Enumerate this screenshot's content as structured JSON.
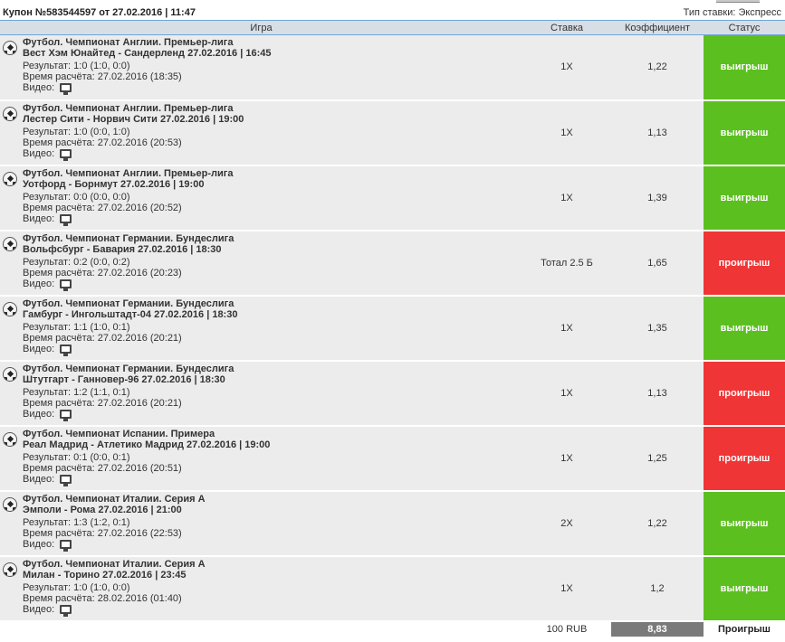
{
  "coupon": {
    "title": "Купон №583544597 от 27.02.2016 | 11:47",
    "bet_type": "Тип ставки: Экспресс"
  },
  "columns": {
    "game": "Игра",
    "stake": "Ставка",
    "coef": "Коэффициент",
    "status": "Статус"
  },
  "labels": {
    "video": "Видео:"
  },
  "colors": {
    "win": "#5cbf20",
    "lose": "#ef3535",
    "header_bg": "#d8dee5",
    "row_bg": "#ececec",
    "total_bg": "#7a7a7a"
  },
  "icons": {
    "sport": "soccer-ball-icon",
    "video": "monitor-icon"
  },
  "matches": [
    {
      "league": "Футбол. Чемпионат Англии. Премьер-лига",
      "teams": "Вест Хэм Юнайтед - Сандерленд 27.02.2016 | 16:45",
      "result": "Результат: 1:0 (1:0, 0:0)",
      "calc_time": "Время расчёта: 27.02.2016 (18:35)",
      "stake": "1X",
      "coef": "1,22",
      "status": "выигрыш",
      "outcome": "win"
    },
    {
      "league": "Футбол. Чемпионат Англии. Премьер-лига",
      "teams": "Лестер Сити - Норвич Сити 27.02.2016 | 19:00",
      "result": "Результат: 1:0 (0:0, 1:0)",
      "calc_time": "Время расчёта: 27.02.2016 (20:53)",
      "stake": "1X",
      "coef": "1,13",
      "status": "выигрыш",
      "outcome": "win"
    },
    {
      "league": "Футбол. Чемпионат Англии. Премьер-лига",
      "teams": "Уотфорд - Борнмут 27.02.2016 | 19:00",
      "result": "Результат: 0:0 (0:0, 0:0)",
      "calc_time": "Время расчёта: 27.02.2016 (20:52)",
      "stake": "1X",
      "coef": "1,39",
      "status": "выигрыш",
      "outcome": "win"
    },
    {
      "league": "Футбол. Чемпионат Германии. Бундеслига",
      "teams": "Вольфсбург - Бавария 27.02.2016 | 18:30",
      "result": "Результат: 0:2 (0:0, 0:2)",
      "calc_time": "Время расчёта: 27.02.2016 (20:23)",
      "stake": "Тотал 2.5 Б",
      "coef": "1,65",
      "status": "проигрыш",
      "outcome": "lose"
    },
    {
      "league": "Футбол. Чемпионат Германии. Бундеслига",
      "teams": "Гамбург - Ингольштадт-04 27.02.2016 | 18:30",
      "result": "Результат: 1:1 (1:0, 0:1)",
      "calc_time": "Время расчёта: 27.02.2016 (20:21)",
      "stake": "1X",
      "coef": "1,35",
      "status": "выигрыш",
      "outcome": "win"
    },
    {
      "league": "Футбол. Чемпионат Германии. Бундеслига",
      "teams": "Штутгарт - Ганновер-96 27.02.2016 | 18:30",
      "result": "Результат: 1:2 (1:1, 0:1)",
      "calc_time": "Время расчёта: 27.02.2016 (20:21)",
      "stake": "1X",
      "coef": "1,13",
      "status": "проигрыш",
      "outcome": "lose"
    },
    {
      "league": "Футбол. Чемпионат Испании. Примера",
      "teams": "Реал Мадрид - Атлетико Мадрид 27.02.2016 | 19:00",
      "result": "Результат: 0:1 (0:0, 0:1)",
      "calc_time": "Время расчёта: 27.02.2016 (20:51)",
      "stake": "1X",
      "coef": "1,25",
      "status": "проигрыш",
      "outcome": "lose"
    },
    {
      "league": "Футбол. Чемпионат Италии. Серия А",
      "teams": "Эмполи - Рома 27.02.2016 | 21:00",
      "result": "Результат: 1:3 (1:2, 0:1)",
      "calc_time": "Время расчёта: 27.02.2016 (22:53)",
      "stake": "2X",
      "coef": "1,22",
      "status": "выигрыш",
      "outcome": "win"
    },
    {
      "league": "Футбол. Чемпионат Италии. Серия А",
      "teams": "Милан - Торино 27.02.2016 | 23:45",
      "result": "Результат: 1:0 (1:0, 0:0)",
      "calc_time": "Время расчёта: 28.02.2016 (01:40)",
      "stake": "1X",
      "coef": "1,2",
      "status": "выигрыш",
      "outcome": "win"
    }
  ],
  "footer": {
    "amount": "100 RUB",
    "total_coef": "8,83",
    "final_status": "Проигрыш"
  }
}
